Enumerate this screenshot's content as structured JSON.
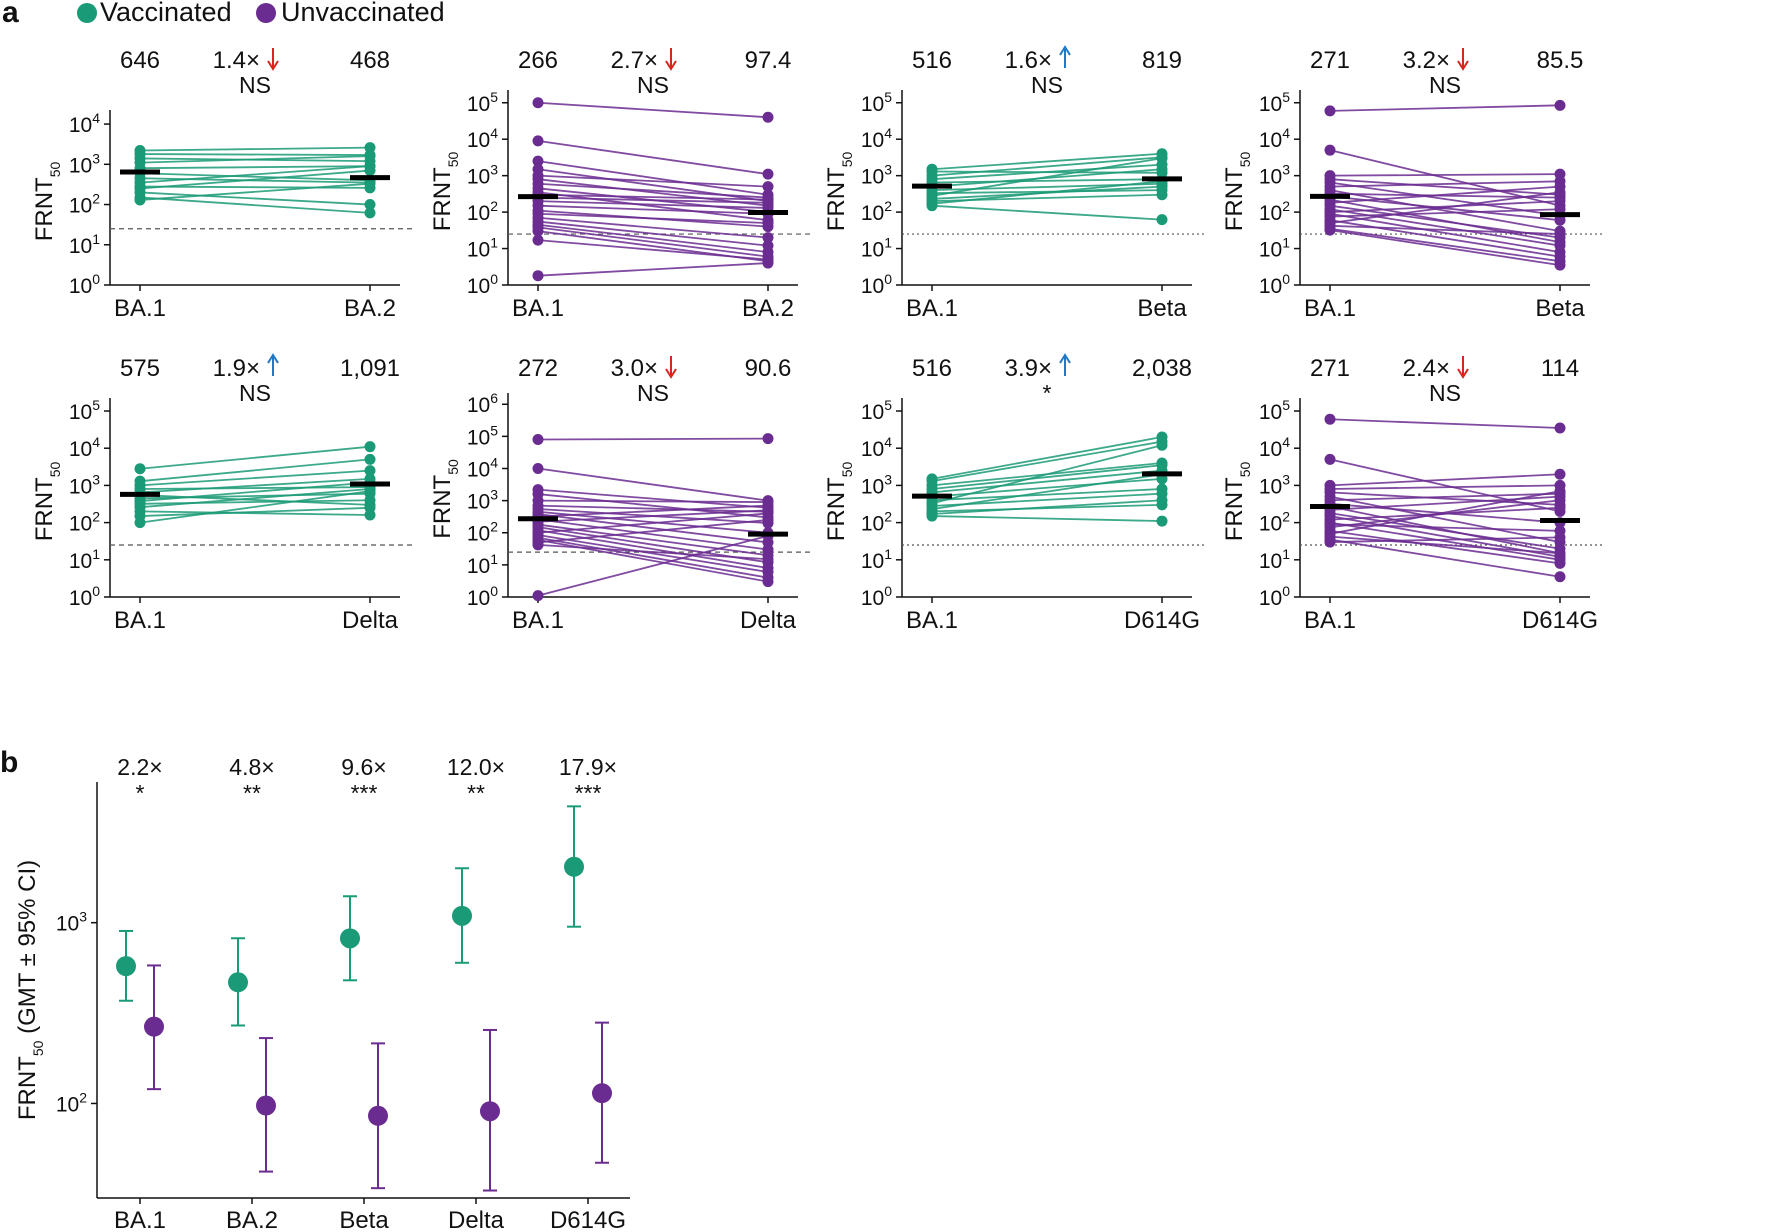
{
  "figure": {
    "panel_a_letter": "a",
    "panel_b_letter": "b",
    "legend": [
      {
        "label": "Vaccinated",
        "color": "#1a9a76"
      },
      {
        "label": "Unvaccinated",
        "color": "#6a2c91"
      }
    ],
    "arrow_colors": {
      "down": "#d7261e",
      "up": "#1f78c8"
    },
    "ylabel_a": "FRNT",
    "ylabel_a_sub": "50"
  },
  "chart_data": [
    {
      "type": "scatter",
      "title": "",
      "group": "Vaccinated",
      "color": "#1a9a76",
      "categories": [
        "BA.1",
        "BA.2"
      ],
      "yscale": "log",
      "ylim_exp": [
        0,
        4
      ],
      "gmt": [
        646,
        468
      ],
      "gmt_labels": [
        "646",
        "468"
      ],
      "fold": "1.4×",
      "direction": "down",
      "significance": "NS",
      "threshold": 25,
      "threshold_style": "dashed",
      "pairs": [
        [
          2200,
          2600
        ],
        [
          1800,
          1700
        ],
        [
          1400,
          1200
        ],
        [
          1100,
          1600
        ],
        [
          800,
          900
        ],
        [
          600,
          400
        ],
        [
          450,
          350
        ],
        [
          350,
          900
        ],
        [
          280,
          260
        ],
        [
          250,
          700
        ],
        [
          200,
          100
        ],
        [
          150,
          62
        ],
        [
          130,
          330
        ]
      ]
    },
    {
      "type": "scatter",
      "title": "",
      "group": "Unvaccinated",
      "color": "#6a2c91",
      "categories": [
        "BA.1",
        "BA.2"
      ],
      "yscale": "log",
      "ylim_exp": [
        0,
        5
      ],
      "gmt": [
        266,
        97.4
      ],
      "gmt_labels": [
        "266",
        "97.4"
      ],
      "fold": "2.7×",
      "direction": "down",
      "significance": "NS",
      "threshold": 25,
      "threshold_style": "dashed",
      "pairs": [
        [
          100000,
          40000
        ],
        [
          9000,
          1100
        ],
        [
          2500,
          300
        ],
        [
          1500,
          200
        ],
        [
          1000,
          500
        ],
        [
          800,
          150
        ],
        [
          600,
          250
        ],
        [
          450,
          100
        ],
        [
          350,
          60
        ],
        [
          300,
          220
        ],
        [
          250,
          180
        ],
        [
          200,
          130
        ],
        [
          150,
          90
        ],
        [
          110,
          40
        ],
        [
          90,
          50
        ],
        [
          70,
          20
        ],
        [
          55,
          12
        ],
        [
          45,
          8
        ],
        [
          38,
          6
        ],
        [
          30,
          4.5
        ],
        [
          17,
          5
        ],
        [
          1.8,
          4
        ]
      ]
    },
    {
      "type": "scatter",
      "title": "",
      "group": "Vaccinated",
      "color": "#1a9a76",
      "categories": [
        "BA.1",
        "Beta"
      ],
      "yscale": "log",
      "ylim_exp": [
        0,
        5
      ],
      "gmt": [
        516,
        819
      ],
      "gmt_labels": [
        "516",
        "819"
      ],
      "fold": "1.6×",
      "direction": "up",
      "significance": "NS",
      "threshold": 25,
      "threshold_style": "dotted",
      "pairs": [
        [
          1500,
          4000
        ],
        [
          1300,
          1200
        ],
        [
          1000,
          3200
        ],
        [
          800,
          2000
        ],
        [
          650,
          800
        ],
        [
          500,
          1500
        ],
        [
          400,
          600
        ],
        [
          330,
          400
        ],
        [
          280,
          3000
        ],
        [
          230,
          500
        ],
        [
          200,
          300
        ],
        [
          170,
          700
        ],
        [
          150,
          62
        ]
      ]
    },
    {
      "type": "scatter",
      "title": "",
      "group": "Unvaccinated",
      "color": "#6a2c91",
      "categories": [
        "BA.1",
        "Beta"
      ],
      "yscale": "log",
      "ylim_exp": [
        0,
        5
      ],
      "gmt": [
        271,
        85.5
      ],
      "gmt_labels": [
        "271",
        "85.5"
      ],
      "fold": "3.2×",
      "direction": "down",
      "significance": "NS",
      "threshold": 25,
      "threshold_style": "dotted",
      "pairs": [
        [
          60000,
          85000
        ],
        [
          5000,
          150
        ],
        [
          1000,
          1100
        ],
        [
          800,
          300
        ],
        [
          650,
          80
        ],
        [
          500,
          700
        ],
        [
          400,
          30
        ],
        [
          320,
          250
        ],
        [
          270,
          60
        ],
        [
          220,
          15
        ],
        [
          180,
          500
        ],
        [
          150,
          20
        ],
        [
          120,
          12
        ],
        [
          100,
          200
        ],
        [
          90,
          8
        ],
        [
          75,
          120
        ],
        [
          60,
          6
        ],
        [
          50,
          350
        ],
        [
          42,
          25
        ],
        [
          35,
          4.5
        ],
        [
          32,
          3.5
        ]
      ]
    },
    {
      "type": "scatter",
      "title": "",
      "group": "Vaccinated",
      "color": "#1a9a76",
      "categories": [
        "BA.1",
        "Delta"
      ],
      "yscale": "log",
      "ylim_exp": [
        0,
        5
      ],
      "gmt": [
        575,
        1091
      ],
      "gmt_labels": [
        "575",
        "1,091"
      ],
      "fold": "1.9×",
      "direction": "up",
      "significance": "NS",
      "threshold": 25,
      "threshold_style": "dashed",
      "pairs": [
        [
          2800,
          11000
        ],
        [
          1300,
          5000
        ],
        [
          1000,
          2500
        ],
        [
          800,
          900
        ],
        [
          650,
          1500
        ],
        [
          550,
          300
        ],
        [
          450,
          600
        ],
        [
          380,
          1200
        ],
        [
          320,
          400
        ],
        [
          260,
          800
        ],
        [
          200,
          160
        ],
        [
          150,
          250
        ],
        [
          100,
          700
        ]
      ]
    },
    {
      "type": "scatter",
      "title": "",
      "group": "Unvaccinated",
      "color": "#6a2c91",
      "categories": [
        "BA.1",
        "Delta"
      ],
      "yscale": "log",
      "ylim_exp": [
        0,
        6
      ],
      "gmt": [
        272,
        90.6
      ],
      "gmt_labels": [
        "272",
        "90.6"
      ],
      "fold": "3.0×",
      "direction": "down",
      "significance": "NS",
      "threshold": 25,
      "threshold_style": "dashed",
      "pairs": [
        [
          80000,
          85000
        ],
        [
          10000,
          1000
        ],
        [
          2200,
          600
        ],
        [
          1600,
          300
        ],
        [
          1000,
          900
        ],
        [
          700,
          450
        ],
        [
          550,
          200
        ],
        [
          450,
          100
        ],
        [
          380,
          50
        ],
        [
          320,
          700
        ],
        [
          260,
          30
        ],
        [
          220,
          500
        ],
        [
          180,
          20
        ],
        [
          150,
          12
        ],
        [
          120,
          8
        ],
        [
          100,
          400
        ],
        [
          85,
          6
        ],
        [
          70,
          4
        ],
        [
          60,
          3
        ],
        [
          50,
          250
        ],
        [
          42,
          15
        ],
        [
          1.1,
          80
        ]
      ]
    },
    {
      "type": "scatter",
      "title": "",
      "group": "Vaccinated",
      "color": "#1a9a76",
      "categories": [
        "BA.1",
        "D614G"
      ],
      "yscale": "log",
      "ylim_exp": [
        0,
        5
      ],
      "gmt": [
        516,
        2038
      ],
      "gmt_labels": [
        "516",
        "2,038"
      ],
      "fold": "3.9×",
      "direction": "up",
      "significance": "*",
      "threshold": 25,
      "threshold_style": "dotted",
      "pairs": [
        [
          1500,
          20000
        ],
        [
          1300,
          15000
        ],
        [
          1000,
          4000
        ],
        [
          800,
          3500
        ],
        [
          650,
          2500
        ],
        [
          500,
          1500
        ],
        [
          400,
          800
        ],
        [
          330,
          12000
        ],
        [
          280,
          600
        ],
        [
          230,
          2000
        ],
        [
          200,
          300
        ],
        [
          170,
          400
        ],
        [
          150,
          110
        ]
      ]
    },
    {
      "type": "scatter",
      "title": "",
      "group": "Unvaccinated",
      "color": "#6a2c91",
      "categories": [
        "BA.1",
        "D614G"
      ],
      "yscale": "log",
      "ylim_exp": [
        0,
        5
      ],
      "gmt": [
        271,
        114
      ],
      "gmt_labels": [
        "271",
        "114"
      ],
      "fold": "2.4×",
      "direction": "down",
      "significance": "NS",
      "threshold": 25,
      "threshold_style": "dotted",
      "pairs": [
        [
          60000,
          35000
        ],
        [
          5000,
          200
        ],
        [
          1000,
          2000
        ],
        [
          800,
          1000
        ],
        [
          650,
          300
        ],
        [
          500,
          30
        ],
        [
          400,
          600
        ],
        [
          320,
          100
        ],
        [
          270,
          15
        ],
        [
          220,
          500
        ],
        [
          180,
          20
        ],
        [
          150,
          12
        ],
        [
          120,
          250
        ],
        [
          100,
          10
        ],
        [
          90,
          60
        ],
        [
          75,
          400
        ],
        [
          60,
          8
        ],
        [
          50,
          700
        ],
        [
          42,
          15
        ],
        [
          35,
          3.5
        ],
        [
          30,
          40
        ]
      ]
    },
    {
      "type": "scatter",
      "title": "",
      "xlabel": "",
      "ylabel": "FRNT",
      "ylabel_sub": "50",
      "ylabel_suffix": " (GMT ± 95% CI)",
      "yscale": "log",
      "ylim": [
        30,
        6000
      ],
      "categories": [
        "BA.1",
        "BA.2",
        "Beta",
        "Delta",
        "D614G"
      ],
      "fold_labels": [
        "2.2×",
        "4.8×",
        "9.6×",
        "12.0×",
        "17.9×"
      ],
      "significance": [
        "*",
        "**",
        "***",
        "**",
        "***"
      ],
      "series": [
        {
          "name": "Vaccinated",
          "color": "#1a9a76",
          "values": [
            575,
            468,
            819,
            1091,
            2038
          ],
          "lower": [
            370,
            270,
            480,
            600,
            950
          ],
          "upper": [
            900,
            820,
            1400,
            2000,
            4400
          ]
        },
        {
          "name": "Unvaccinated",
          "color": "#6a2c91",
          "values": [
            266,
            97.4,
            85.5,
            90.6,
            114
          ],
          "lower": [
            120,
            42,
            34,
            33,
            47
          ],
          "upper": [
            580,
            230,
            215,
            255,
            280
          ]
        }
      ]
    }
  ]
}
